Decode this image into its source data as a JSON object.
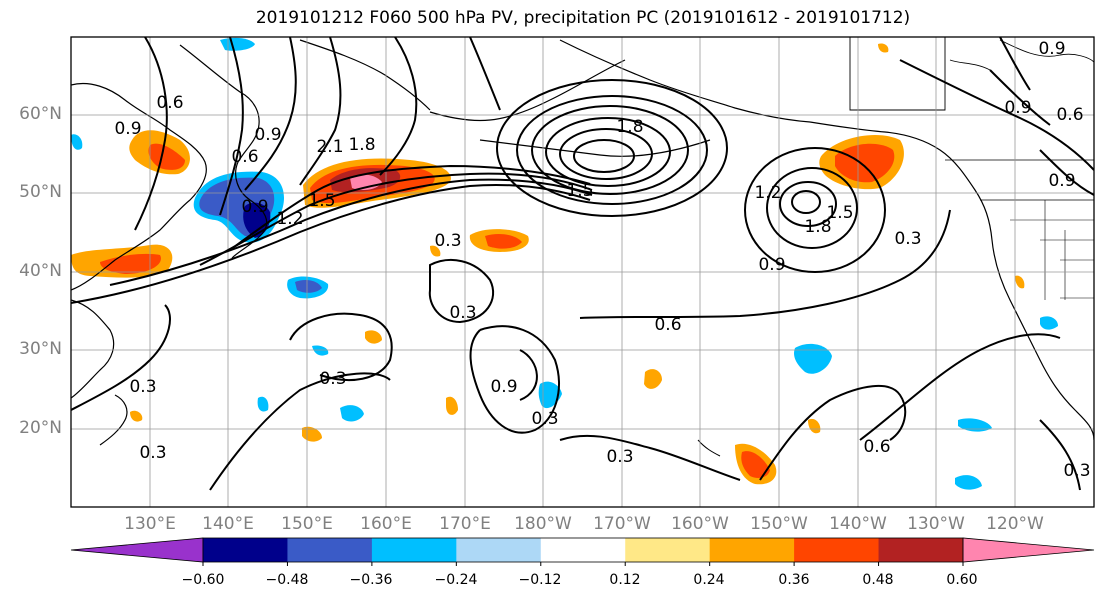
{
  "title": "2019101212 F060 500 hPa PV, precipitation PC (2019101612 - 2019101712)",
  "lat_labels": [
    "60°N",
    "50°N",
    "40°N",
    "30°N",
    "20°N"
  ],
  "lon_labels": [
    "130°E",
    "140°E",
    "150°E",
    "160°E",
    "170°E",
    "180°W",
    "170°W",
    "160°W",
    "150°W",
    "140°W",
    "130°W",
    "120°W"
  ],
  "contour_labels": [
    "0.9",
    "0.6",
    "0.9",
    "2.1",
    "1.8",
    "0.6",
    "0.9",
    "1.2",
    "1.5",
    "1.8",
    "1.5",
    "0.3",
    "0.3",
    "0.3",
    "0.6",
    "0.9",
    "0.3",
    "0.3",
    "0.3",
    "0.3",
    "0.6",
    "0.9",
    "0.9",
    "1.2",
    "1.5",
    "1.8",
    "0.9",
    "0.3",
    "0.6",
    "0.3",
    "0.9"
  ],
  "colorbar": {
    "ticks": [
      "−0.60",
      "−0.48",
      "−0.36",
      "−0.24",
      "−0.12",
      "0.12",
      "0.24",
      "0.36",
      "0.48",
      "0.60"
    ],
    "colors": [
      "#9932CC",
      "#00008B",
      "#3A5BC7",
      "#00BFFF",
      "#ADD8F6",
      "#FFFFFF",
      "#FFE887",
      "#FFA500",
      "#FF4500",
      "#B22222",
      "#FF85AF"
    ]
  },
  "colors": {
    "ocean": "#FFFFFF",
    "grid": "#999999",
    "contour": "#000000"
  }
}
